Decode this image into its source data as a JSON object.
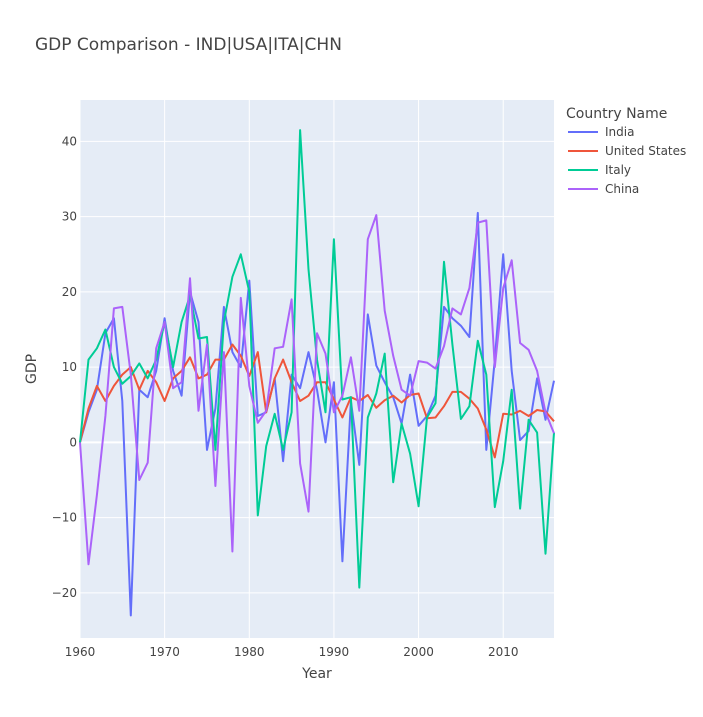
{
  "chart_data": {
    "type": "line",
    "title": "GDP Comparison - IND|USA|ITA|CHN",
    "xlabel": "Year",
    "ylabel": "GDP",
    "xlim": [
      1960,
      2016
    ],
    "ylim": [
      -26,
      45.5
    ],
    "xticks": [
      1960,
      1970,
      1980,
      1990,
      2000,
      2010
    ],
    "yticks": [
      -20,
      -10,
      0,
      10,
      20,
      30,
      40
    ],
    "grid": true,
    "legend_title": "Country Name",
    "legend_position": "top-right",
    "x": [
      1960,
      1961,
      1962,
      1963,
      1964,
      1965,
      1966,
      1967,
      1968,
      1969,
      1970,
      1971,
      1972,
      1973,
      1974,
      1975,
      1976,
      1977,
      1978,
      1979,
      1980,
      1981,
      1982,
      1983,
      1984,
      1985,
      1986,
      1987,
      1988,
      1989,
      1990,
      1991,
      1992,
      1993,
      1994,
      1995,
      1996,
      1997,
      1998,
      1999,
      2000,
      2001,
      2002,
      2003,
      2004,
      2005,
      2006,
      2007,
      2008,
      2009,
      2010,
      2011,
      2012,
      2013,
      2014,
      2015,
      2016
    ],
    "series": [
      {
        "name": "India",
        "color": "#636efa",
        "values": [
          0,
          4,
          7,
          14.5,
          16.5,
          5.5,
          -23,
          7,
          6,
          9.5,
          16.5,
          9.5,
          6.2,
          20,
          16,
          -1,
          4.5,
          18,
          12,
          10,
          21.5,
          3.5,
          4,
          8.5,
          -2.5,
          9,
          7.2,
          12,
          7,
          0,
          8,
          -15.8,
          5.5,
          -3,
          17,
          10.2,
          8,
          6,
          2.5,
          9,
          2.2,
          3.5,
          6.2,
          18,
          16.5,
          15.5,
          14,
          30.5,
          -1,
          11,
          25,
          9.5,
          0.3,
          1.5,
          8.5,
          3,
          8.2
        ]
      },
      {
        "name": "United States",
        "color": "#ef553b",
        "values": [
          0,
          4.5,
          7.5,
          5.5,
          7.5,
          9,
          10,
          7,
          9.5,
          8,
          5.5,
          8.5,
          9.5,
          11.3,
          8.5,
          9,
          11,
          11,
          13,
          11.5,
          8.8,
          12,
          4,
          8.5,
          11,
          8,
          5.5,
          6.2,
          8,
          8,
          5.7,
          3.3,
          6,
          5.5,
          6.3,
          4.6,
          5.6,
          6.2,
          5.3,
          6.3,
          6.5,
          3.2,
          3.3,
          4.8,
          6.7,
          6.7,
          5.8,
          4.5,
          1.7,
          -2,
          3.8,
          3.7,
          4.2,
          3.5,
          4.3,
          4.1,
          2.8
        ]
      },
      {
        "name": "Italy",
        "color": "#00cc96",
        "values": [
          0,
          11,
          12.5,
          15,
          10,
          7.8,
          8.8,
          10.5,
          8.5,
          11,
          16,
          10,
          16,
          19.5,
          13.8,
          14,
          -1,
          16,
          22,
          25,
          20,
          -9.7,
          -0.5,
          3.8,
          -1,
          4,
          41.5,
          23,
          11,
          4,
          27,
          5.7,
          6,
          -19.3,
          3.3,
          6.5,
          11.8,
          -5.3,
          2.5,
          -1.5,
          -8.5,
          3.3,
          5.2,
          24,
          13,
          3.1,
          4.8,
          13.5,
          9,
          -8.6,
          -2.5,
          7,
          -8.8,
          3,
          1.3,
          -14.8,
          1.3
        ]
      },
      {
        "name": "China",
        "color": "#ab63fa",
        "values": [
          0,
          -16.2,
          -7,
          3.5,
          17.8,
          18,
          9,
          -5,
          -2.7,
          12.5,
          16,
          7.2,
          8,
          21.8,
          4.2,
          13,
          -5.8,
          12,
          -14.5,
          19.2,
          7.5,
          2.6,
          4.2,
          12.5,
          12.7,
          19,
          -2.8,
          -9.2,
          14.5,
          11.8,
          4,
          6.2,
          11.3,
          4.2,
          27,
          30.2,
          17.5,
          11.5,
          7,
          6.2,
          10.8,
          10.6,
          9.8,
          12.8,
          17.8,
          17,
          20.5,
          29.2,
          29.5,
          10,
          20.5,
          24.2,
          13.2,
          12.3,
          9.5,
          4,
          1.2
        ]
      }
    ]
  }
}
